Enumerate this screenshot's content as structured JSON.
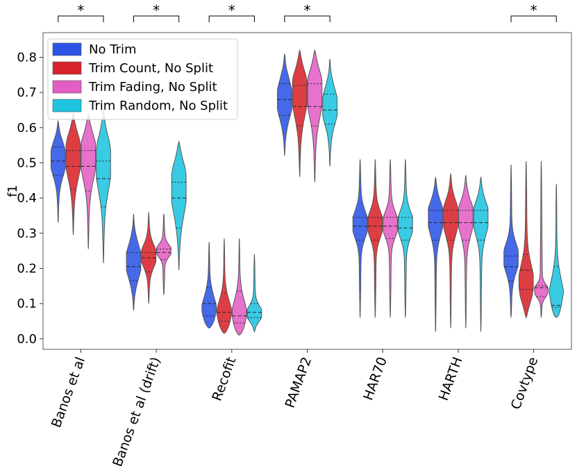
{
  "chart_data": {
    "type": "violin",
    "ylabel": "f1",
    "xlabel": "",
    "ylim": [
      -0.03,
      0.87
    ],
    "yticks": [
      "0.0",
      "0.1",
      "0.2",
      "0.3",
      "0.4",
      "0.5",
      "0.6",
      "0.7",
      "0.8"
    ],
    "categories": [
      "Banos et al",
      "Banos et al (drift)",
      "Recofit",
      "PAMAP2",
      "HAR70",
      "HARTH",
      "Covtype"
    ],
    "significance": [
      "*",
      "*",
      "*",
      "*",
      "",
      "",
      "*"
    ],
    "legend": {
      "position": "top-left"
    },
    "series": [
      {
        "name": "No Trim",
        "color": "#2b54e6",
        "violins": [
          {
            "lo": 0.33,
            "q1": 0.465,
            "median": 0.505,
            "q3": 0.545,
            "hi": 0.62,
            "peak": 0.51
          },
          {
            "lo": 0.08,
            "q1": 0.165,
            "median": 0.205,
            "q3": 0.245,
            "hi": 0.355,
            "peak": 0.22
          },
          {
            "lo": 0.03,
            "q1": 0.065,
            "median": 0.1,
            "q3": 0.145,
            "hi": 0.275,
            "peak": 0.07
          },
          {
            "lo": 0.52,
            "q1": 0.635,
            "median": 0.68,
            "q3": 0.725,
            "hi": 0.81,
            "peak": 0.68
          },
          {
            "lo": 0.06,
            "q1": 0.28,
            "median": 0.32,
            "q3": 0.345,
            "hi": 0.51,
            "peak": 0.325
          },
          {
            "lo": 0.02,
            "q1": 0.28,
            "median": 0.33,
            "q3": 0.365,
            "hi": 0.46,
            "peak": 0.345
          },
          {
            "lo": 0.06,
            "q1": 0.165,
            "median": 0.205,
            "q3": 0.235,
            "hi": 0.495,
            "peak": 0.23
          }
        ]
      },
      {
        "name": "Trim Count, No Split",
        "color": "#d8232a",
        "violins": [
          {
            "lo": 0.295,
            "q1": 0.425,
            "median": 0.49,
            "q3": 0.535,
            "hi": 0.64,
            "peak": 0.52
          },
          {
            "lo": 0.1,
            "q1": 0.19,
            "median": 0.23,
            "q3": 0.245,
            "hi": 0.36,
            "peak": 0.235
          },
          {
            "lo": 0.015,
            "q1": 0.05,
            "median": 0.075,
            "q3": 0.13,
            "hi": 0.285,
            "peak": 0.06
          },
          {
            "lo": 0.46,
            "q1": 0.605,
            "median": 0.66,
            "q3": 0.72,
            "hi": 0.82,
            "peak": 0.7
          },
          {
            "lo": 0.06,
            "q1": 0.28,
            "median": 0.32,
            "q3": 0.345,
            "hi": 0.51,
            "peak": 0.325
          },
          {
            "lo": 0.03,
            "q1": 0.28,
            "median": 0.33,
            "q3": 0.365,
            "hi": 0.47,
            "peak": 0.345
          },
          {
            "lo": 0.06,
            "q1": 0.14,
            "median": 0.195,
            "q3": 0.24,
            "hi": 0.505,
            "peak": 0.15
          }
        ]
      },
      {
        "name": "Trim Fading, No Split",
        "color": "#e25ec4",
        "violins": [
          {
            "lo": 0.255,
            "q1": 0.42,
            "median": 0.49,
            "q3": 0.535,
            "hi": 0.64,
            "peak": 0.52
          },
          {
            "lo": 0.125,
            "q1": 0.225,
            "median": 0.245,
            "q3": 0.255,
            "hi": 0.355,
            "peak": 0.25
          },
          {
            "lo": 0.01,
            "q1": 0.045,
            "median": 0.065,
            "q3": 0.135,
            "hi": 0.285,
            "peak": 0.055
          },
          {
            "lo": 0.445,
            "q1": 0.605,
            "median": 0.66,
            "q3": 0.725,
            "hi": 0.82,
            "peak": 0.7
          },
          {
            "lo": 0.06,
            "q1": 0.285,
            "median": 0.32,
            "q3": 0.345,
            "hi": 0.51,
            "peak": 0.325
          },
          {
            "lo": 0.03,
            "q1": 0.28,
            "median": 0.33,
            "q3": 0.365,
            "hi": 0.465,
            "peak": 0.345
          },
          {
            "lo": 0.06,
            "q1": 0.12,
            "median": 0.145,
            "q3": 0.15,
            "hi": 0.505,
            "peak": 0.135
          }
        ]
      },
      {
        "name": "Trim Random, No Split",
        "color": "#1ec4e0",
        "violins": [
          {
            "lo": 0.215,
            "q1": 0.375,
            "median": 0.455,
            "q3": 0.505,
            "hi": 0.65,
            "peak": 0.5
          },
          {
            "lo": 0.195,
            "q1": 0.315,
            "median": 0.4,
            "q3": 0.445,
            "hi": 0.56,
            "peak": 0.43
          },
          {
            "lo": 0.02,
            "q1": 0.06,
            "median": 0.075,
            "q3": 0.1,
            "hi": 0.24,
            "peak": 0.07
          },
          {
            "lo": 0.49,
            "q1": 0.61,
            "median": 0.65,
            "q3": 0.695,
            "hi": 0.795,
            "peak": 0.66
          },
          {
            "lo": 0.06,
            "q1": 0.28,
            "median": 0.315,
            "q3": 0.345,
            "hi": 0.51,
            "peak": 0.325
          },
          {
            "lo": 0.02,
            "q1": 0.28,
            "median": 0.33,
            "q3": 0.365,
            "hi": 0.46,
            "peak": 0.345
          },
          {
            "lo": 0.06,
            "q1": 0.09,
            "median": 0.095,
            "q3": 0.205,
            "hi": 0.44,
            "peak": 0.1
          }
        ]
      }
    ]
  }
}
